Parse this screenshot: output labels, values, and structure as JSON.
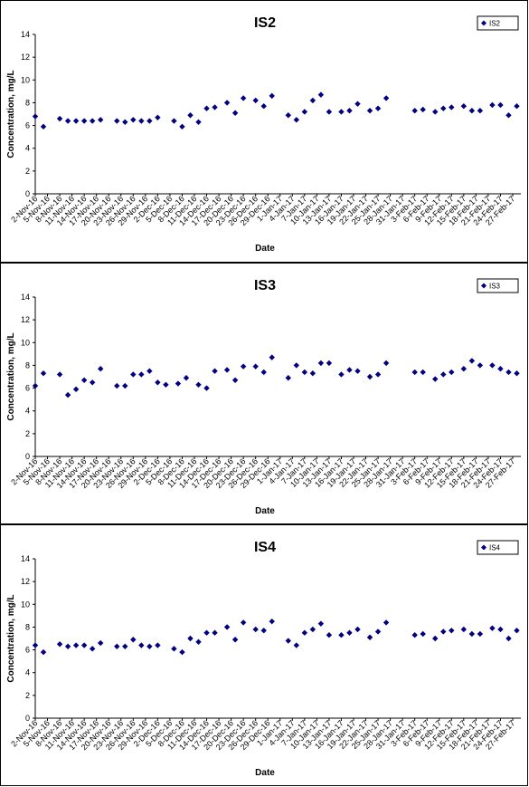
{
  "chart_data": [
    {
      "type": "scatter",
      "title": "IS2",
      "xlabel": "Date",
      "ylabel": "Concentration, mg/L",
      "ylim": [
        0,
        14
      ],
      "yticks": [
        0,
        2,
        4,
        6,
        8,
        10,
        12,
        14
      ],
      "grid": false,
      "legend": "top-right",
      "series": [
        {
          "name": "IS2",
          "color": "#000080",
          "points": [
            [
              "2-Nov-16",
              6.8
            ],
            [
              "4-Nov-16",
              5.9
            ],
            [
              "8-Nov-16",
              6.6
            ],
            [
              "10-Nov-16",
              6.4
            ],
            [
              "12-Nov-16",
              6.4
            ],
            [
              "14-Nov-16",
              6.4
            ],
            [
              "16-Nov-16",
              6.4
            ],
            [
              "18-Nov-16",
              6.5
            ],
            [
              "22-Nov-16",
              6.4
            ],
            [
              "24-Nov-16",
              6.3
            ],
            [
              "26-Nov-16",
              6.5
            ],
            [
              "28-Nov-16",
              6.4
            ],
            [
              "30-Nov-16",
              6.4
            ],
            [
              "2-Dec-16",
              6.7
            ],
            [
              "6-Dec-16",
              6.4
            ],
            [
              "8-Dec-16",
              5.9
            ],
            [
              "10-Dec-16",
              6.9
            ],
            [
              "12-Dec-16",
              6.3
            ],
            [
              "14-Dec-16",
              7.5
            ],
            [
              "16-Dec-16",
              7.6
            ],
            [
              "19-Dec-16",
              8.0
            ],
            [
              "21-Dec-16",
              7.1
            ],
            [
              "23-Dec-16",
              8.4
            ],
            [
              "26-Dec-16",
              8.2
            ],
            [
              "28-Dec-16",
              7.7
            ],
            [
              "30-Dec-16",
              8.6
            ],
            [
              "3-Jan-17",
              6.9
            ],
            [
              "5-Jan-17",
              6.5
            ],
            [
              "7-Jan-17",
              7.2
            ],
            [
              "9-Jan-17",
              8.2
            ],
            [
              "11-Jan-17",
              8.7
            ],
            [
              "13-Jan-17",
              7.2
            ],
            [
              "16-Jan-17",
              7.2
            ],
            [
              "18-Jan-17",
              7.3
            ],
            [
              "20-Jan-17",
              7.9
            ],
            [
              "23-Jan-17",
              7.3
            ],
            [
              "25-Jan-17",
              7.5
            ],
            [
              "27-Jan-17",
              8.4
            ],
            [
              "3-Feb-17",
              7.3
            ],
            [
              "5-Feb-17",
              7.4
            ],
            [
              "8-Feb-17",
              7.2
            ],
            [
              "10-Feb-17",
              7.5
            ],
            [
              "12-Feb-17",
              7.6
            ],
            [
              "15-Feb-17",
              7.7
            ],
            [
              "17-Feb-17",
              7.3
            ],
            [
              "19-Feb-17",
              7.3
            ],
            [
              "22-Feb-17",
              7.8
            ],
            [
              "24-Feb-17",
              7.8
            ],
            [
              "26-Feb-17",
              6.9
            ],
            [
              "28-Feb-17",
              7.7
            ]
          ]
        }
      ]
    },
    {
      "type": "scatter",
      "title": "IS3",
      "xlabel": "Date",
      "ylabel": "Concentration, mg/L",
      "ylim": [
        0,
        14
      ],
      "yticks": [
        0,
        2,
        4,
        6,
        8,
        10,
        12,
        14
      ],
      "grid": false,
      "legend": "top-right",
      "series": [
        {
          "name": "IS3",
          "color": "#000080",
          "points": [
            [
              "2-Nov-16",
              6.2
            ],
            [
              "4-Nov-16",
              7.3
            ],
            [
              "8-Nov-16",
              7.2
            ],
            [
              "10-Nov-16",
              5.4
            ],
            [
              "12-Nov-16",
              5.9
            ],
            [
              "14-Nov-16",
              6.7
            ],
            [
              "16-Nov-16",
              6.5
            ],
            [
              "18-Nov-16",
              7.7
            ],
            [
              "22-Nov-16",
              6.2
            ],
            [
              "24-Nov-16",
              6.2
            ],
            [
              "26-Nov-16",
              7.2
            ],
            [
              "28-Nov-16",
              7.2
            ],
            [
              "30-Nov-16",
              7.5
            ],
            [
              "2-Dec-16",
              6.5
            ],
            [
              "4-Dec-16",
              6.3
            ],
            [
              "7-Dec-16",
              6.4
            ],
            [
              "9-Dec-16",
              6.9
            ],
            [
              "12-Dec-16",
              6.3
            ],
            [
              "14-Dec-16",
              6.0
            ],
            [
              "16-Dec-16",
              7.5
            ],
            [
              "19-Dec-16",
              7.6
            ],
            [
              "21-Dec-16",
              6.7
            ],
            [
              "23-Dec-16",
              7.9
            ],
            [
              "26-Dec-16",
              7.9
            ],
            [
              "28-Dec-16",
              7.4
            ],
            [
              "30-Dec-16",
              8.7
            ],
            [
              "3-Jan-17",
              6.9
            ],
            [
              "5-Jan-17",
              8.0
            ],
            [
              "7-Jan-17",
              7.4
            ],
            [
              "9-Jan-17",
              7.3
            ],
            [
              "11-Jan-17",
              8.2
            ],
            [
              "13-Jan-17",
              8.2
            ],
            [
              "16-Jan-17",
              7.2
            ],
            [
              "18-Jan-17",
              7.6
            ],
            [
              "20-Jan-17",
              7.5
            ],
            [
              "23-Jan-17",
              7.0
            ],
            [
              "25-Jan-17",
              7.2
            ],
            [
              "27-Jan-17",
              8.2
            ],
            [
              "3-Feb-17",
              7.4
            ],
            [
              "5-Feb-17",
              7.4
            ],
            [
              "8-Feb-17",
              6.8
            ],
            [
              "10-Feb-17",
              7.2
            ],
            [
              "12-Feb-17",
              7.4
            ],
            [
              "15-Feb-17",
              7.7
            ],
            [
              "17-Feb-17",
              8.4
            ],
            [
              "19-Feb-17",
              8.0
            ],
            [
              "22-Feb-17",
              8.0
            ],
            [
              "24-Feb-17",
              7.7
            ],
            [
              "26-Feb-17",
              7.4
            ],
            [
              "28-Feb-17",
              7.3
            ]
          ]
        }
      ]
    },
    {
      "type": "scatter",
      "title": "IS4",
      "xlabel": "Date",
      "ylabel": "Concentration, mg/L",
      "ylim": [
        0,
        14
      ],
      "yticks": [
        0,
        2,
        4,
        6,
        8,
        10,
        12,
        14
      ],
      "grid": false,
      "legend": "top-right",
      "series": [
        {
          "name": "IS4",
          "color": "#000080",
          "points": [
            [
              "2-Nov-16",
              6.4
            ],
            [
              "4-Nov-16",
              5.8
            ],
            [
              "8-Nov-16",
              6.5
            ],
            [
              "10-Nov-16",
              6.3
            ],
            [
              "12-Nov-16",
              6.4
            ],
            [
              "14-Nov-16",
              6.4
            ],
            [
              "16-Nov-16",
              6.1
            ],
            [
              "18-Nov-16",
              6.6
            ],
            [
              "22-Nov-16",
              6.3
            ],
            [
              "24-Nov-16",
              6.3
            ],
            [
              "26-Nov-16",
              6.9
            ],
            [
              "28-Nov-16",
              6.4
            ],
            [
              "30-Nov-16",
              6.3
            ],
            [
              "2-Dec-16",
              6.4
            ],
            [
              "6-Dec-16",
              6.1
            ],
            [
              "8-Dec-16",
              5.8
            ],
            [
              "10-Dec-16",
              7.0
            ],
            [
              "12-Dec-16",
              6.7
            ],
            [
              "14-Dec-16",
              7.5
            ],
            [
              "16-Dec-16",
              7.5
            ],
            [
              "19-Dec-16",
              8.0
            ],
            [
              "21-Dec-16",
              6.9
            ],
            [
              "23-Dec-16",
              8.4
            ],
            [
              "26-Dec-16",
              7.8
            ],
            [
              "28-Dec-16",
              7.7
            ],
            [
              "30-Dec-16",
              8.5
            ],
            [
              "3-Jan-17",
              6.8
            ],
            [
              "5-Jan-17",
              6.4
            ],
            [
              "7-Jan-17",
              7.5
            ],
            [
              "9-Jan-17",
              7.8
            ],
            [
              "11-Jan-17",
              8.3
            ],
            [
              "13-Jan-17",
              7.3
            ],
            [
              "16-Jan-17",
              7.3
            ],
            [
              "18-Jan-17",
              7.5
            ],
            [
              "20-Jan-17",
              7.8
            ],
            [
              "23-Jan-17",
              7.1
            ],
            [
              "25-Jan-17",
              7.6
            ],
            [
              "27-Jan-17",
              8.4
            ],
            [
              "3-Feb-17",
              7.3
            ],
            [
              "5-Feb-17",
              7.4
            ],
            [
              "8-Feb-17",
              7.0
            ],
            [
              "10-Feb-17",
              7.6
            ],
            [
              "12-Feb-17",
              7.7
            ],
            [
              "15-Feb-17",
              7.8
            ],
            [
              "17-Feb-17",
              7.4
            ],
            [
              "19-Feb-17",
              7.4
            ],
            [
              "22-Feb-17",
              7.9
            ],
            [
              "24-Feb-17",
              7.8
            ],
            [
              "26-Feb-17",
              7.0
            ],
            [
              "28-Feb-17",
              7.7
            ]
          ]
        }
      ]
    }
  ],
  "x_tick_labels": [
    "2-Nov-16",
    "5-Nov-16",
    "8-Nov-16",
    "11-Nov-16",
    "14-Nov-16",
    "17-Nov-16",
    "20-Nov-16",
    "23-Nov-16",
    "26-Nov-16",
    "29-Nov-16",
    "2-Dec-16",
    "5-Dec-16",
    "8-Dec-16",
    "11-Dec-16",
    "14-Dec-16",
    "17-Dec-16",
    "20-Dec-16",
    "23-Dec-16",
    "26-Dec-16",
    "29-Dec-16",
    "1-Jan-17",
    "4-Jan-17",
    "7-Jan-17",
    "10-Jan-17",
    "13-Jan-17",
    "16-Jan-17",
    "19-Jan-17",
    "22-Jan-17",
    "25-Jan-17",
    "28-Jan-17",
    "31-Jan-17",
    "3-Feb-17",
    "6-Feb-17",
    "9-Feb-17",
    "12-Feb-17",
    "15-Feb-17",
    "18-Feb-17",
    "21-Feb-17",
    "24-Feb-17",
    "27-Feb-17"
  ],
  "x_range": [
    "2-Nov-16",
    "1-Mar-17"
  ]
}
